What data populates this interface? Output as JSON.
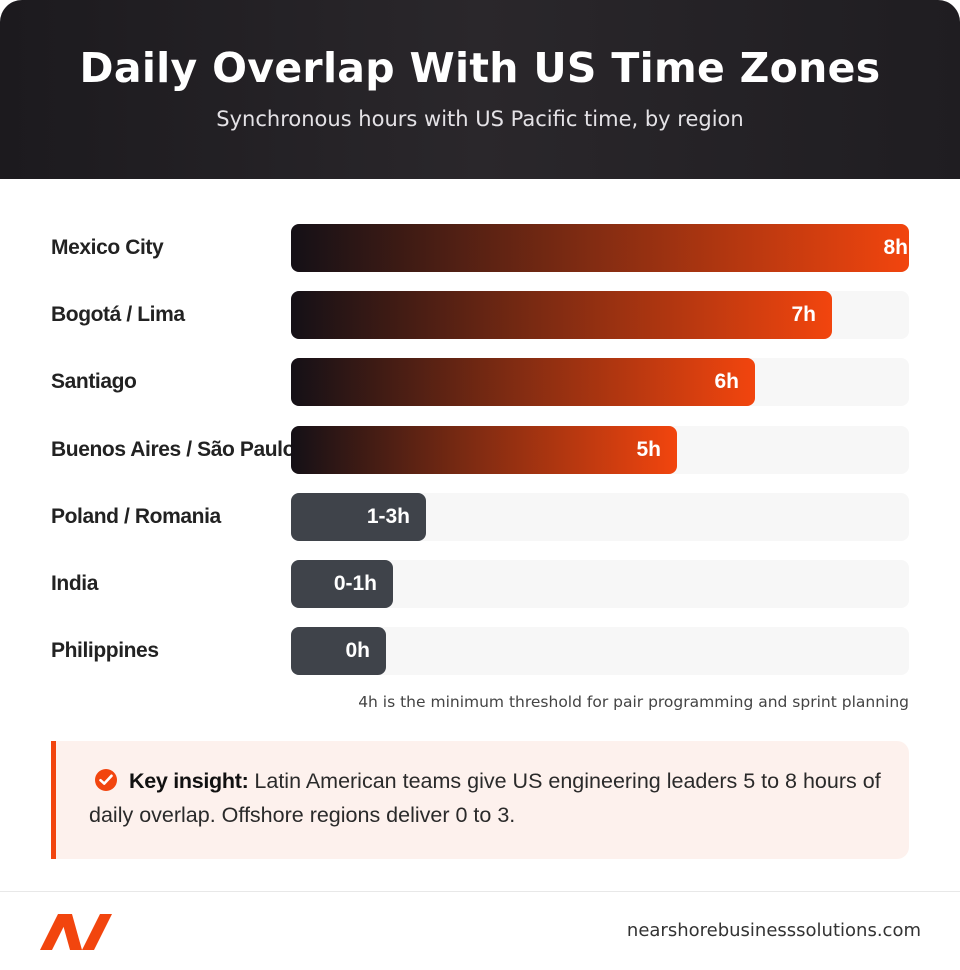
{
  "header": {
    "title": "Daily Overlap With US Time Zones",
    "subtitle": "Synchronous hours with US Pacific time, by region"
  },
  "chart_data": {
    "type": "bar",
    "orientation": "horizontal",
    "categories": [
      "Mexico City",
      "Bogotá / Lima",
      "Santiago",
      "Buenos Aires / São Paulo",
      "Poland / Romania",
      "India",
      "Philippines"
    ],
    "values": [
      8,
      7,
      6,
      5,
      2,
      0.5,
      0
    ],
    "value_labels": [
      "8h",
      "7h",
      "6h",
      "5h",
      "1-3h",
      "0-1h",
      "0h"
    ],
    "groups": [
      "latam",
      "latam",
      "latam",
      "latam",
      "offshore",
      "offshore",
      "offshore"
    ],
    "xlim": [
      0,
      8
    ],
    "colors": {
      "latam_start": "#141016",
      "latam_end": "#f2450e",
      "offshore": "#3f434a",
      "track": "#f7f7f7"
    },
    "note": "4h is the minimum threshold for pair programming and sprint planning"
  },
  "insight": {
    "label": "Key insight:",
    "text": " Latin American teams give US engineering leaders 5 to 8 hours of daily overlap. Offshore regions deliver 0 to 3.",
    "icon": "check-circle-icon"
  },
  "footer": {
    "logo_icon": "brand-logo-icon",
    "website": "nearshorebusinesssolutions.com"
  }
}
